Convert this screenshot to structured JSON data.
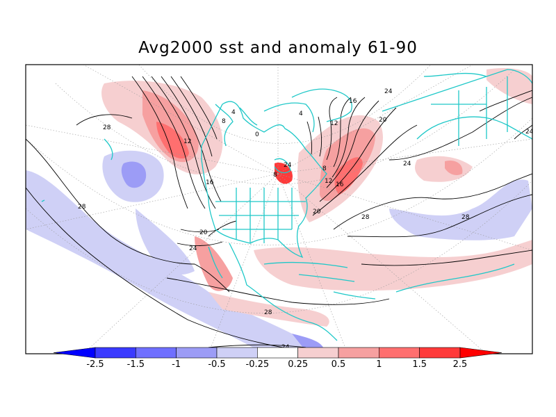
{
  "title": "Avg2000 sst and anomaly 61-90",
  "colorbar": {
    "ticks": [
      "-2.5",
      "-1.5",
      "-1",
      "-0.5",
      "-0.25",
      "0.25",
      "0.5",
      "1",
      "1.5",
      "2.5"
    ],
    "bins": [
      {
        "color": "#0000ff"
      },
      {
        "color": "#3a3aff"
      },
      {
        "color": "#6f6fff"
      },
      {
        "color": "#9c9cf6"
      },
      {
        "color": "#cfd0f6"
      },
      {
        "color": "#ffffff"
      },
      {
        "color": "#f6cfd0"
      },
      {
        "color": "#f6a0a0"
      },
      {
        "color": "#ff6f6f"
      },
      {
        "color": "#ff3a3a"
      },
      {
        "color": "#ff0000"
      }
    ]
  },
  "contour_labels": [
    "28",
    "28",
    "28",
    "28",
    "28",
    "24",
    "24",
    "24",
    "24",
    "20",
    "20",
    "20",
    "16",
    "16",
    "16",
    "12",
    "12",
    "12",
    "8",
    "8",
    "8",
    "4",
    "4",
    "0",
    "24",
    "24"
  ],
  "colors": {
    "coastline": "#1ec8c8",
    "contour": "#000000",
    "frame": "#000000"
  }
}
